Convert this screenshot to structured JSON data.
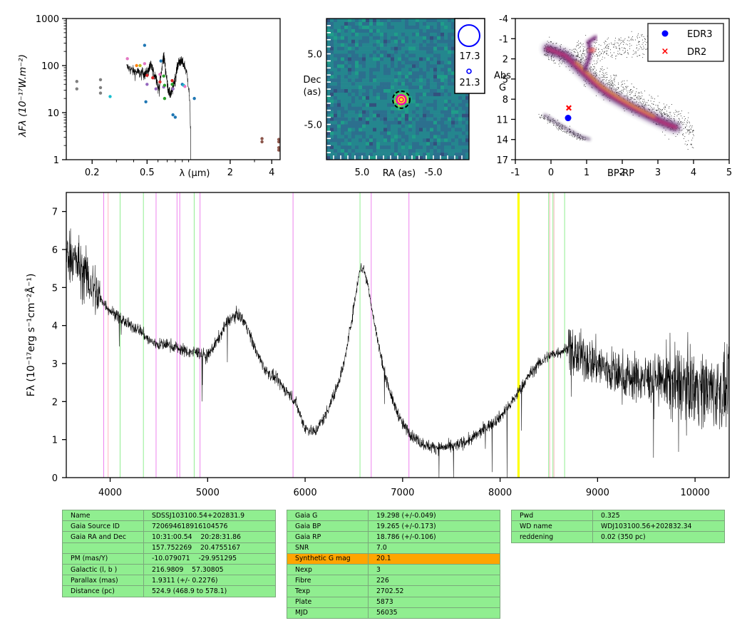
{
  "charts": {
    "sed": {
      "ylabel_html": "λF<tspan font-style='normal'>λ</tspan>",
      "ylabel": "λFλ (10⁻¹⁷W.m⁻²)",
      "xlabel": "λ (μm)",
      "xticks": [
        "0.2",
        "0.5",
        "2",
        "4"
      ],
      "yticks": [
        "1",
        "10",
        "100",
        "1000"
      ]
    },
    "image": {
      "xlabel": "RA (as)",
      "ylabel": "Dec (as)",
      "xticks": [
        "5.0",
        "-5.0"
      ],
      "yticks": [
        "5.0",
        "-5.0"
      ],
      "legend": [
        "17.3",
        "21.3"
      ]
    },
    "hrd": {
      "xlabel": "BP-RP",
      "ylabel": "Abs G",
      "xticks": [
        "-1",
        "0",
        "1",
        "2",
        "3",
        "4",
        "5"
      ],
      "yticks": [
        "-4",
        "-1",
        "2",
        "5",
        "8",
        "11",
        "14",
        "17"
      ],
      "legend": [
        "EDR3",
        "DR2"
      ]
    },
    "spectrum": {
      "ylabel": "Fλ (10⁻¹⁷erg s⁻¹cm⁻²Å⁻¹)",
      "xticks": [
        "4000",
        "5000",
        "6000",
        "7000",
        "8000",
        "9000",
        "10000"
      ],
      "yticks": [
        "0",
        "1",
        "2",
        "3",
        "4",
        "5",
        "6",
        "7"
      ]
    }
  },
  "chart_data": [
    {
      "type": "scatter",
      "id": "sed",
      "xscale": "log",
      "yscale": "log",
      "xlim": [
        0.13,
        4.6
      ],
      "ylim": [
        1,
        1000
      ],
      "points": [
        {
          "x": 0.155,
          "y": 46,
          "color": "#7f7f7f"
        },
        {
          "x": 0.155,
          "y": 32,
          "color": "#7f7f7f"
        },
        {
          "x": 0.23,
          "y": 50,
          "color": "#7f7f7f"
        },
        {
          "x": 0.23,
          "y": 34,
          "color": "#7f7f7f"
        },
        {
          "x": 0.23,
          "y": 26,
          "color": "#7f7f7f"
        },
        {
          "x": 0.27,
          "y": 22,
          "color": "#17becf"
        },
        {
          "x": 0.36,
          "y": 140,
          "color": "#e377c2"
        },
        {
          "x": 0.42,
          "y": 100,
          "color": "#ff7f0e"
        },
        {
          "x": 0.445,
          "y": 100,
          "color": "#bcbd22"
        },
        {
          "x": 0.48,
          "y": 270,
          "color": "#1f77b4"
        },
        {
          "x": 0.48,
          "y": 110,
          "color": "#e377c2"
        },
        {
          "x": 0.49,
          "y": 17,
          "color": "#1f77b4"
        },
        {
          "x": 0.5,
          "y": 62,
          "color": "#d62728"
        },
        {
          "x": 0.5,
          "y": 40,
          "color": "#9467bd"
        },
        {
          "x": 0.55,
          "y": 55,
          "color": "#d62728"
        },
        {
          "x": 0.58,
          "y": 32,
          "color": "#9467bd"
        },
        {
          "x": 0.62,
          "y": 65,
          "color": "#e377c2"
        },
        {
          "x": 0.62,
          "y": 45,
          "color": "#d62728"
        },
        {
          "x": 0.63,
          "y": 125,
          "color": "#1f77b4"
        },
        {
          "x": 0.66,
          "y": 60,
          "color": "#2ca02c"
        },
        {
          "x": 0.66,
          "y": 35,
          "color": "#9467bd"
        },
        {
          "x": 0.67,
          "y": 38,
          "color": "#2ca02c"
        },
        {
          "x": 0.67,
          "y": 20,
          "color": "#2ca02c"
        },
        {
          "x": 0.76,
          "y": 48,
          "color": "#d62728"
        },
        {
          "x": 0.76,
          "y": 40,
          "color": "#2ca02c"
        },
        {
          "x": 0.77,
          "y": 32,
          "color": "#9467bd"
        },
        {
          "x": 0.77,
          "y": 9,
          "color": "#1f77b4"
        },
        {
          "x": 0.8,
          "y": 8,
          "color": "#1f77b4"
        },
        {
          "x": 0.9,
          "y": 40,
          "color": "#1f77b4"
        },
        {
          "x": 0.92,
          "y": 38,
          "color": "#17becf"
        },
        {
          "x": 0.94,
          "y": 36,
          "color": "#e377c2"
        },
        {
          "x": 1.1,
          "y": 20,
          "color": "#1f77b4"
        },
        {
          "x": 3.4,
          "y": 2.8,
          "color": "#8c564b"
        },
        {
          "x": 3.4,
          "y": 2.4,
          "color": "#8c564b"
        },
        {
          "x": 4.5,
          "y": 2.7,
          "color": "#8c564b"
        },
        {
          "x": 4.5,
          "y": 2.4,
          "color": "#8c564b"
        },
        {
          "x": 4.5,
          "y": 1.8,
          "color": "#8c564b"
        },
        {
          "x": 4.5,
          "y": 1.6,
          "color": "#8c564b"
        }
      ]
    },
    {
      "type": "heatmap",
      "id": "image",
      "xlim": [
        10,
        -10
      ],
      "ylim": [
        -10,
        10
      ],
      "target": {
        "x": -0.5,
        "y": -1.5
      },
      "sources": [
        {
          "x": -0.5,
          "y": -1.5,
          "mag": 17.3
        },
        {
          "x": -0.5,
          "y": -1.5,
          "mag": 21.3
        }
      ]
    },
    {
      "type": "scatter",
      "id": "hrd",
      "xlim": [
        -1,
        5
      ],
      "ylim": [
        17,
        -4
      ],
      "series": [
        {
          "name": "EDR3",
          "x": 0.48,
          "y": 10.8,
          "color": "#0000ff",
          "marker": "circle"
        },
        {
          "name": "DR2",
          "x": 0.5,
          "y": 9.3,
          "color": "#ff0000",
          "marker": "x"
        }
      ]
    },
    {
      "type": "line",
      "id": "spectrum",
      "xlim": [
        3550,
        10350
      ],
      "ylim": [
        0,
        7.5
      ],
      "envelope": [
        [
          3550,
          6.0
        ],
        [
          3700,
          5.5
        ],
        [
          3800,
          5.1
        ],
        [
          3900,
          4.7
        ],
        [
          4000,
          4.4
        ],
        [
          4100,
          4.2
        ],
        [
          4200,
          4.0
        ],
        [
          4300,
          3.9
        ],
        [
          4400,
          3.6
        ],
        [
          4500,
          3.5
        ],
        [
          4600,
          3.5
        ],
        [
          4700,
          3.4
        ],
        [
          4800,
          3.3
        ],
        [
          4900,
          3.3
        ],
        [
          5000,
          3.2
        ],
        [
          5100,
          3.6
        ],
        [
          5200,
          4.1
        ],
        [
          5250,
          4.2
        ],
        [
          5300,
          4.3
        ],
        [
          5350,
          4.2
        ],
        [
          5400,
          4.0
        ],
        [
          5500,
          3.3
        ],
        [
          5600,
          2.8
        ],
        [
          5700,
          2.6
        ],
        [
          5800,
          2.3
        ],
        [
          5900,
          2.0
        ],
        [
          6000,
          1.3
        ],
        [
          6100,
          1.2
        ],
        [
          6200,
          1.6
        ],
        [
          6300,
          2.2
        ],
        [
          6400,
          3.0
        ],
        [
          6500,
          4.5
        ],
        [
          6560,
          5.5
        ],
        [
          6600,
          5.5
        ],
        [
          6650,
          5.0
        ],
        [
          6700,
          4.2
        ],
        [
          6800,
          2.9
        ],
        [
          6900,
          2.0
        ],
        [
          7000,
          1.4
        ],
        [
          7100,
          1.1
        ],
        [
          7200,
          0.9
        ],
        [
          7300,
          0.8
        ],
        [
          7400,
          0.8
        ],
        [
          7500,
          0.8
        ],
        [
          7600,
          0.9
        ],
        [
          7700,
          1.0
        ],
        [
          7800,
          1.2
        ],
        [
          7900,
          1.4
        ],
        [
          8000,
          1.6
        ],
        [
          8100,
          1.9
        ],
        [
          8200,
          2.3
        ],
        [
          8300,
          2.7
        ],
        [
          8400,
          3.0
        ],
        [
          8500,
          3.2
        ],
        [
          8600,
          3.3
        ],
        [
          8700,
          3.4
        ],
        [
          8800,
          3.2
        ],
        [
          8900,
          3.1
        ],
        [
          9000,
          3.0
        ],
        [
          9200,
          2.7
        ],
        [
          9400,
          2.6
        ],
        [
          9600,
          2.6
        ],
        [
          9800,
          2.5
        ],
        [
          10000,
          2.4
        ],
        [
          10200,
          2.3
        ],
        [
          10350,
          2.2
        ]
      ],
      "lines_green": [
        4102,
        4341,
        4862,
        6563,
        8498,
        8542,
        8662
      ],
      "lines_magenta": [
        3934,
        4471,
        4686,
        4714,
        4922,
        5876,
        6678,
        7065
      ],
      "lines_pink": [
        3968,
        8498,
        8542
      ],
      "lines_yellow": [
        8183,
        8195
      ]
    }
  ],
  "tables": {
    "left": [
      {
        "k": "Name",
        "v": "SDSSJ103100.54+202831.9"
      },
      {
        "k": "Gaia Source ID",
        "v": "720694618916104576"
      },
      {
        "k": "Gaia RA and Dec",
        "v": "10:31:00.54    20:28:31.86"
      },
      {
        "k": "",
        "v": "157.752269    20.4755167"
      },
      {
        "k": "PM (mas/Y)",
        "v": "-10.079071    -29.951295"
      },
      {
        "k": "Galactic (l, b )",
        "v": "216.9809    57.30805"
      },
      {
        "k": "Parallax (mas)",
        "v": "1.9311 (+/- 0.2276)"
      },
      {
        "k": "Distance (pc)",
        "v": "524.9 (468.9 to 578.1)"
      }
    ],
    "middle": [
      {
        "k": "Gaia G",
        "v": "19.298 (+/-0.049)"
      },
      {
        "k": "Gaia BP",
        "v": "19.265 (+/-0.173)"
      },
      {
        "k": "Gaia RP",
        "v": "18.786 (+/-0.106)"
      },
      {
        "k": "SNR",
        "v": "7.0"
      },
      {
        "k": "Synthetic G mag",
        "v": "20.1",
        "highlight": "#ffa500"
      },
      {
        "k": "Nexp",
        "v": "3"
      },
      {
        "k": "Fibre",
        "v": "226"
      },
      {
        "k": "Texp",
        "v": "2702.52"
      },
      {
        "k": "Plate",
        "v": "5873"
      },
      {
        "k": "MJD",
        "v": "56035"
      }
    ],
    "right": [
      {
        "k": "Pwd",
        "v": "0.325"
      },
      {
        "k": "WD name",
        "v": "WDJ103100.56+202832.34"
      },
      {
        "k": "reddening",
        "v": "0.02 (350 pc)"
      }
    ]
  }
}
